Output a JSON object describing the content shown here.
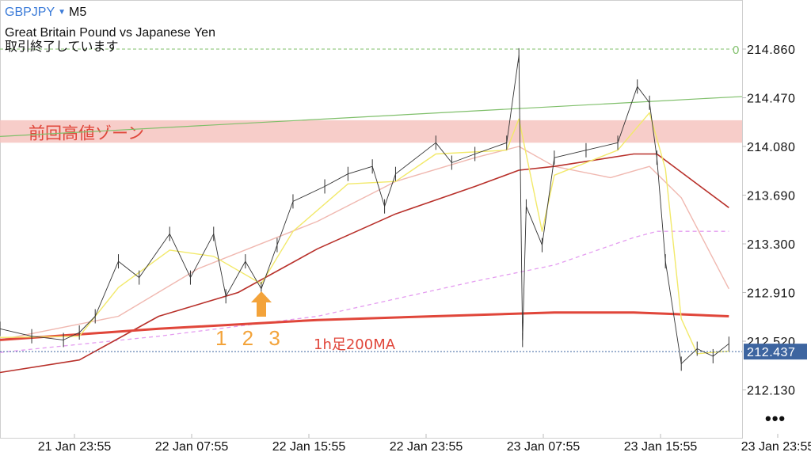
{
  "header": {
    "symbol": "GBPJPY",
    "symbol_dropdown_icon": "triangle-down-icon",
    "timeframe": "M5",
    "description": "Great Britain Pound vs Japanese Yen",
    "status": "取引終了しています"
  },
  "more_button": "•••",
  "colors": {
    "price": "#333333",
    "fast_ma": "#f2e96a",
    "pink_ma": "#f0b8b0",
    "dark_red_ma": "#b8302a",
    "h1_200ma": "#e0463a",
    "violet_ma": "#e49cf0",
    "trendline": "#7fbf6a",
    "zone": "#f6c4c0",
    "current_price_bg": "#3d65a0",
    "annotation_red": "#e0463a",
    "annotation_orange": "#f3a33a"
  },
  "chart_data": {
    "type": "line",
    "title": "",
    "ylim": [
      211.9,
      215.05
    ],
    "y_ticks": [
      "214.860",
      "214.470",
      "214.080",
      "213.690",
      "213.300",
      "212.910",
      "212.520",
      "212.130"
    ],
    "x_ticks": [
      "21 Jan 23:55",
      "22 Jan 07:55",
      "22 Jan 15:55",
      "22 Jan 23:55",
      "23 Jan 07:55",
      "23 Jan 15:55",
      "23 Jan 23:55"
    ],
    "current_price": "212.437",
    "grid": false,
    "series": [
      {
        "key": "price",
        "points": [
          [
            "21 Jan 18:50",
            212.62
          ],
          [
            "21 Jan 21:00",
            212.56
          ],
          [
            "21 Jan 23:10",
            212.53
          ],
          [
            "22 Jan 00:15",
            212.59
          ],
          [
            "22 Jan 01:20",
            212.72
          ],
          [
            "22 Jan 02:55",
            213.16
          ],
          [
            "22 Jan 04:20",
            213.03
          ],
          [
            "22 Jan 06:25",
            213.38
          ],
          [
            "22 Jan 07:50",
            213.03
          ],
          [
            "22 Jan 09:25",
            213.38
          ],
          [
            "22 Jan 10:15",
            212.88
          ],
          [
            "22 Jan 11:35",
            213.16
          ],
          [
            "22 Jan 12:40",
            212.94
          ],
          [
            "22 Jan 13:45",
            213.29
          ],
          [
            "22 Jan 14:50",
            213.64
          ],
          [
            "22 Jan 17:00",
            213.76
          ],
          [
            "22 Jan 18:35",
            213.86
          ],
          [
            "22 Jan 20:15",
            213.92
          ],
          [
            "22 Jan 21:05",
            213.6
          ],
          [
            "22 Jan 21:50",
            213.86
          ],
          [
            "23 Jan 00:35",
            214.11
          ],
          [
            "23 Jan 01:40",
            213.95
          ],
          [
            "23 Jan 03:15",
            214.02
          ],
          [
            "23 Jan 05:25",
            214.11
          ],
          [
            "23 Jan 06:15",
            214.81
          ],
          [
            "23 Jan 06:30",
            212.53
          ],
          [
            "23 Jan 06:45",
            213.6
          ],
          [
            "23 Jan 07:50",
            213.29
          ],
          [
            "23 Jan 08:40",
            213.99
          ],
          [
            "23 Jan 10:50",
            214.05
          ],
          [
            "23 Jan 13:00",
            214.11
          ],
          [
            "23 Jan 14:20",
            214.56
          ],
          [
            "23 Jan 15:10",
            214.43
          ],
          [
            "23 Jan 15:40",
            213.99
          ],
          [
            "23 Jan 16:15",
            213.16
          ],
          [
            "23 Jan 17:20",
            212.34
          ],
          [
            "23 Jan 18:25",
            212.46
          ],
          [
            "23 Jan 19:30",
            212.4
          ],
          [
            "23 Jan 20:35",
            212.5
          ]
        ]
      },
      {
        "key": "fast_ma",
        "points": [
          [
            "21 Jan 18:50",
            212.55
          ],
          [
            "22 Jan 00:15",
            212.56
          ],
          [
            "22 Jan 02:55",
            212.95
          ],
          [
            "22 Jan 06:25",
            213.25
          ],
          [
            "22 Jan 09:25",
            213.2
          ],
          [
            "22 Jan 12:40",
            212.98
          ],
          [
            "22 Jan 14:50",
            213.4
          ],
          [
            "22 Jan 18:35",
            213.78
          ],
          [
            "22 Jan 21:50",
            213.8
          ],
          [
            "23 Jan 00:35",
            214.02
          ],
          [
            "23 Jan 05:25",
            214.05
          ],
          [
            "23 Jan 06:15",
            214.3
          ],
          [
            "23 Jan 07:50",
            213.4
          ],
          [
            "23 Jan 08:40",
            213.85
          ],
          [
            "23 Jan 13:00",
            214.05
          ],
          [
            "23 Jan 15:10",
            214.35
          ],
          [
            "23 Jan 16:15",
            213.9
          ],
          [
            "23 Jan 17:20",
            212.7
          ],
          [
            "23 Jan 18:25",
            212.42
          ],
          [
            "23 Jan 20:35",
            212.44
          ]
        ]
      },
      {
        "key": "pink_ma",
        "points": [
          [
            "21 Jan 18:50",
            212.53
          ],
          [
            "22 Jan 02:55",
            212.72
          ],
          [
            "22 Jan 08:20",
            213.1
          ],
          [
            "22 Jan 16:30",
            213.48
          ],
          [
            "22 Jan 21:50",
            213.8
          ],
          [
            "23 Jan 03:15",
            213.99
          ],
          [
            "23 Jan 06:15",
            214.08
          ],
          [
            "23 Jan 08:40",
            213.92
          ],
          [
            "23 Jan 12:30",
            213.83
          ],
          [
            "23 Jan 15:10",
            213.92
          ],
          [
            "23 Jan 17:20",
            213.67
          ],
          [
            "23 Jan 20:35",
            212.94
          ]
        ]
      },
      {
        "key": "dark_red_ma",
        "points": [
          [
            "21 Jan 18:50",
            212.27
          ],
          [
            "22 Jan 00:15",
            212.37
          ],
          [
            "22 Jan 05:40",
            212.72
          ],
          [
            "22 Jan 11:05",
            212.91
          ],
          [
            "22 Jan 16:30",
            213.26
          ],
          [
            "22 Jan 21:50",
            213.54
          ],
          [
            "23 Jan 03:15",
            213.76
          ],
          [
            "23 Jan 06:15",
            213.89
          ],
          [
            "23 Jan 08:40",
            213.92
          ],
          [
            "23 Jan 14:05",
            214.02
          ],
          [
            "23 Jan 15:40",
            214.02
          ],
          [
            "23 Jan 20:35",
            213.59
          ]
        ]
      },
      {
        "key": "violet_ma",
        "dashed": true,
        "points": [
          [
            "21 Jan 18:50",
            212.43
          ],
          [
            "22 Jan 05:40",
            212.56
          ],
          [
            "22 Jan 16:30",
            212.72
          ],
          [
            "23 Jan 03:15",
            213.0
          ],
          [
            "23 Jan 08:40",
            213.13
          ],
          [
            "23 Jan 14:05",
            213.35
          ],
          [
            "23 Jan 15:40",
            213.4
          ],
          [
            "23 Jan 20:35",
            213.4
          ]
        ]
      },
      {
        "key": "h1_200ma",
        "points": [
          [
            "21 Jan 18:50",
            212.53
          ],
          [
            "22 Jan 05:40",
            212.62
          ],
          [
            "22 Jan 16:30",
            212.69
          ],
          [
            "23 Jan 03:15",
            212.73
          ],
          [
            "23 Jan 08:40",
            212.75
          ],
          [
            "23 Jan 14:05",
            212.75
          ],
          [
            "23 Jan 16:15",
            212.74
          ],
          [
            "23 Jan 20:35",
            212.72
          ]
        ]
      }
    ],
    "lines": {
      "trendline": [
        [
          "21 Jan 18:50",
          214.16
        ],
        [
          "end",
          214.48
        ]
      ],
      "zone": [
        214.11,
        214.29
      ],
      "level_zero": {
        "value": 214.86,
        "label": "0"
      }
    },
    "annotations": {
      "zone_label": "前回高値ゾーン",
      "count_label": "1 2 3",
      "ma_label": "1h足200MA",
      "arrow_icon": "arrow-up-icon"
    }
  }
}
